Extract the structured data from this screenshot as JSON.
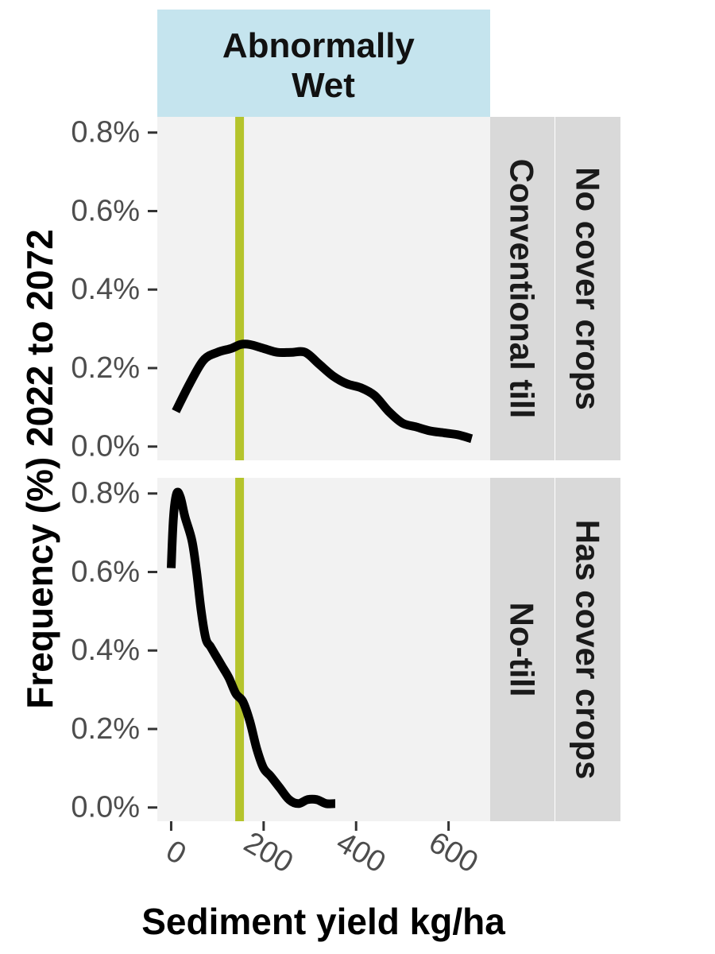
{
  "chart_data": {
    "type": "line",
    "facet_column_label": "Abnormally\nWet",
    "ylabel": "Frequency (%) 2022 to 2072",
    "xlabel": "Sediment yield kg/ha",
    "x_ticks": [
      0,
      200,
      400,
      600
    ],
    "x_tick_labels": [
      "0",
      "200",
      "400",
      "600"
    ],
    "y_ticks": [
      0,
      0.2,
      0.4,
      0.6,
      0.8
    ],
    "y_tick_labels": [
      "0.0%",
      "0.2%",
      "0.4%",
      "0.6%",
      "0.8%"
    ],
    "xlim": [
      -30,
      690
    ],
    "ylim": [
      -0.035,
      0.84
    ],
    "reference_line_x": 148,
    "colors": {
      "reference_line": "#b5c42c",
      "curve": "#000000",
      "panel_bg": "#f2f2f2",
      "strip_top": "#c5e4ee",
      "strip_side": "#d9d9d9"
    },
    "panels": [
      {
        "row_labels": [
          "Conventional till",
          "No cover crops"
        ],
        "series": {
          "x": [
            10,
            40,
            70,
            100,
            130,
            150,
            170,
            200,
            230,
            260,
            290,
            320,
            350,
            380,
            410,
            440,
            470,
            500,
            530,
            560,
            590,
            620,
            650
          ],
          "y": [
            0.09,
            0.16,
            0.22,
            0.24,
            0.25,
            0.26,
            0.26,
            0.25,
            0.24,
            0.24,
            0.24,
            0.21,
            0.18,
            0.16,
            0.15,
            0.13,
            0.09,
            0.06,
            0.05,
            0.04,
            0.035,
            0.03,
            0.02
          ]
        }
      },
      {
        "row_labels": [
          "No-till",
          "Has cover crops"
        ],
        "series": {
          "x": [
            0,
            5,
            12,
            20,
            30,
            45,
            55,
            65,
            75,
            85,
            95,
            110,
            125,
            140,
            155,
            170,
            185,
            200,
            215,
            235,
            255,
            275,
            295,
            315,
            335,
            355
          ],
          "y": [
            0.61,
            0.74,
            0.8,
            0.79,
            0.74,
            0.68,
            0.6,
            0.5,
            0.43,
            0.41,
            0.39,
            0.36,
            0.33,
            0.29,
            0.27,
            0.22,
            0.15,
            0.1,
            0.08,
            0.05,
            0.02,
            0.01,
            0.02,
            0.02,
            0.01,
            0.01
          ]
        }
      }
    ]
  }
}
